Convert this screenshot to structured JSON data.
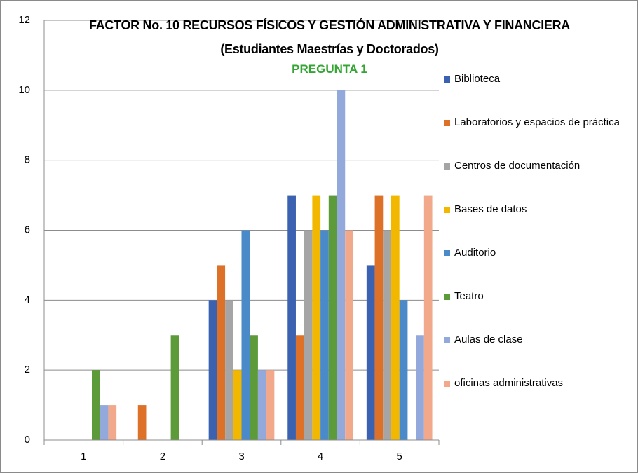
{
  "chart_data": {
    "type": "bar",
    "title": "FACTOR No. 10 RECURSOS FÍSICOS Y GESTIÓN ADMINISTRATIVA Y FINANCIERA (Estudiantes Maestrías y Doctorados)",
    "subtitle": "PREGUNTA 1",
    "categories": [
      "1",
      "2",
      "3",
      "4",
      "5"
    ],
    "series": [
      {
        "name": "Biblioteca",
        "color": "#3a62b0",
        "values": [
          0,
          0,
          4,
          7,
          5
        ]
      },
      {
        "name": "Laboratorios y espacios de práctica",
        "color": "#de7128",
        "values": [
          0,
          1,
          5,
          3,
          7
        ]
      },
      {
        "name": "Centros de documentación",
        "color": "#a5a5a5",
        "values": [
          0,
          0,
          4,
          6,
          6
        ]
      },
      {
        "name": "Bases de datos",
        "color": "#f2b800",
        "values": [
          0,
          0,
          2,
          7,
          7
        ]
      },
      {
        "name": "Auditorio",
        "color": "#4a8ac9",
        "values": [
          0,
          0,
          6,
          6,
          4
        ]
      },
      {
        "name": "Teatro",
        "color": "#5c9a3a",
        "values": [
          2,
          3,
          3,
          7,
          0
        ]
      },
      {
        "name": "Aulas de clase",
        "color": "#93a9dc",
        "values": [
          1,
          0,
          2,
          10,
          3
        ]
      },
      {
        "name": "oficinas administrativas",
        "color": "#f2a88b",
        "values": [
          1,
          0,
          2,
          6,
          7
        ]
      }
    ],
    "ylim": [
      0,
      12
    ],
    "yticks": [
      0,
      2,
      4,
      6,
      8,
      10,
      12
    ],
    "grid": true,
    "legend": "right"
  }
}
